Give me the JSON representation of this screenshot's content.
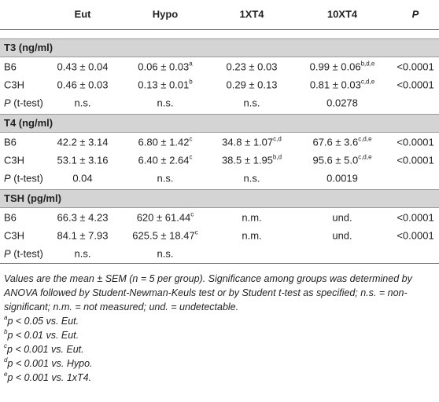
{
  "table": {
    "columns": [
      "Eut",
      "Hypo",
      "1XT4",
      "10XT4",
      "P"
    ],
    "sections": [
      {
        "title": "T3 (ng/ml)",
        "rows": [
          {
            "label": "B6",
            "cells": [
              "0.43 ± 0.04",
              {
                "text": "0.06 ± 0.03",
                "sup": "a"
              },
              "0.23 ± 0.03",
              {
                "text": "0.99 ± 0.06",
                "sup": "b,d,e"
              },
              "<0.0001"
            ]
          },
          {
            "label": "C3H",
            "cells": [
              "0.46 ± 0.03",
              {
                "text": "0.13 ± 0.01",
                "sup": "b"
              },
              "0.29 ± 0.13",
              {
                "text": "0.81 ± 0.03",
                "sup": "c,d,e"
              },
              "<0.0001"
            ]
          },
          {
            "label": {
              "italic": "P",
              "text": "(t-test)"
            },
            "cells": [
              "n.s.",
              "n.s.",
              "n.s.",
              "0.0278"
            ]
          }
        ]
      },
      {
        "title": "T4 (ng/ml)",
        "rows": [
          {
            "label": "B6",
            "cells": [
              "42.2 ± 3.14",
              {
                "text": "6.80 ± 1.42",
                "sup": "c"
              },
              {
                "text": "34.8 ± 1.07",
                "sup": "c,d"
              },
              {
                "text": "67.6 ± 3.6",
                "sup": "c,d,e"
              },
              "<0.0001"
            ]
          },
          {
            "label": "C3H",
            "cells": [
              "53.1 ± 3.16",
              {
                "text": "6.40 ± 2.64",
                "sup": "c"
              },
              {
                "text": "38.5 ± 1.95",
                "sup": "b,d"
              },
              {
                "text": "95.6 ± 5.0",
                "sup": "c,d,e"
              },
              "<0.0001"
            ]
          },
          {
            "label": {
              "italic": "P",
              "text": "(t-test)"
            },
            "cells": [
              "0.04",
              "n.s.",
              "n.s.",
              "0.0019"
            ]
          }
        ]
      },
      {
        "title": "TSH (pg/ml)",
        "rows": [
          {
            "label": "B6",
            "cells": [
              "66.3 ± 4.23",
              {
                "text": "620 ± 61.44",
                "sup": "c"
              },
              "n.m.",
              "und.",
              "<0.0001"
            ]
          },
          {
            "label": "C3H",
            "cells": [
              "84.1 ± 7.93",
              {
                "text": "625.5 ± 18.47",
                "sup": "c"
              },
              "n.m.",
              "und.",
              "<0.0001"
            ]
          },
          {
            "label": {
              "italic": "P",
              "text": "(t-test)"
            },
            "cells": [
              "n.s.",
              "n.s."
            ]
          }
        ]
      }
    ]
  },
  "notes": {
    "text": "Values are the mean ± SEM (n = 5 per group). Significance among groups was determined by ANOVA followed by Student-Newman-Keuls test or by Student t-test as specified; n.s. = non-significant; n.m. = not measured; und. = undetectable.",
    "footnotes": [
      {
        "mark": "a",
        "text": "p < 0.05 vs. Eut."
      },
      {
        "mark": "b",
        "text": "p < 0.01 vs. Eut."
      },
      {
        "mark": "c",
        "text": "p < 0.001 vs. Eut."
      },
      {
        "mark": "d",
        "text": "p < 0.001 vs. Hypo."
      },
      {
        "mark": "e",
        "text": "p < 0.001 vs. 1xT4."
      }
    ]
  }
}
